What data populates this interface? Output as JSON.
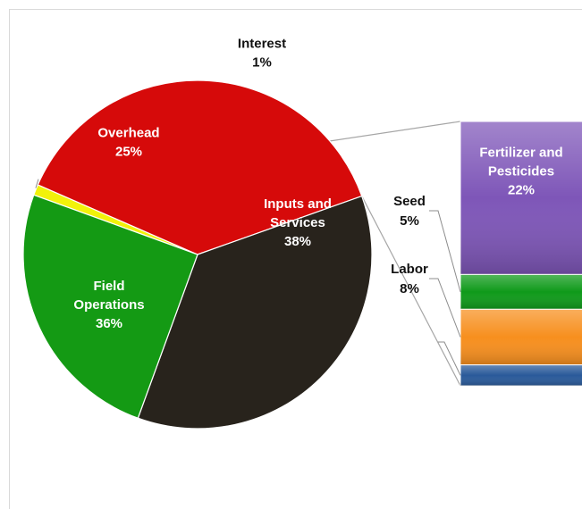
{
  "chart_data": {
    "type": "bar-of-pie",
    "pie": [
      {
        "label": [
          "Interest"
        ],
        "pct": "1%",
        "value": 1,
        "color": "#f2f20a",
        "label_color": "#111111"
      },
      {
        "label": [
          "Inputs and",
          "Services"
        ],
        "pct": "38%",
        "value": 38,
        "color": "#d60a0a",
        "label_color": "#ffffff"
      },
      {
        "label": [
          "Field",
          "Operations"
        ],
        "pct": "36%",
        "value": 36,
        "color": "#28231c",
        "label_color": "#ffffff"
      },
      {
        "label": [
          "Overhead"
        ],
        "pct": "25%",
        "value": 25,
        "color": "#149a14",
        "label_color": "#ffffff"
      }
    ],
    "breakdown_of": "Inputs and Services",
    "bar": [
      {
        "label": [
          "Fertilizer and",
          "Pesticides"
        ],
        "pct": "22%",
        "value": 22,
        "color": "#7e56b8",
        "label_color": "#ffffff"
      },
      {
        "label": [
          "Seed"
        ],
        "pct": "5%",
        "value": 5,
        "color": "#0f9a1a",
        "label_color": "#111111"
      },
      {
        "label": [
          "Labor"
        ],
        "pct": "8%",
        "value": 8,
        "color": "#f78f1e",
        "label_color": "#111111"
      },
      {
        "label": [],
        "pct": "",
        "value": 3,
        "color": "#2a5a9a",
        "label_color": "#111111"
      }
    ]
  }
}
